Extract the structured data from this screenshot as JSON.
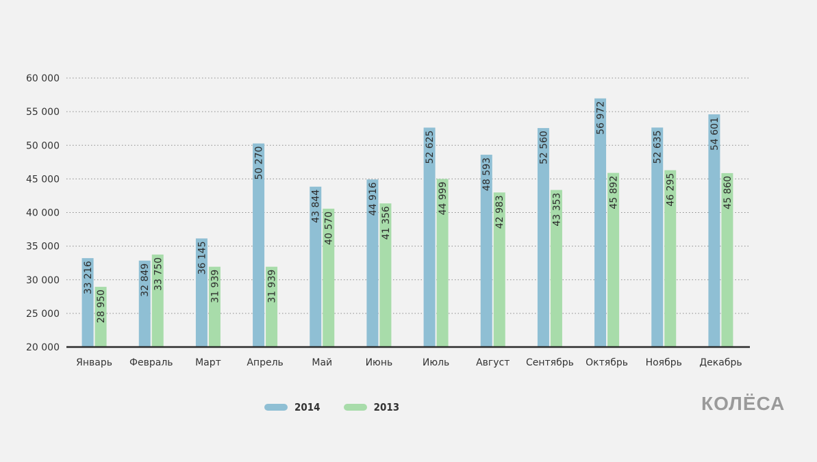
{
  "logo": {
    "text": "КОЛЁСА"
  },
  "chart_data": {
    "type": "bar",
    "title": "",
    "xlabel": "",
    "ylabel": "",
    "ylim": [
      20000,
      60000
    ],
    "yticks": [
      20000,
      25000,
      30000,
      35000,
      40000,
      45000,
      50000,
      55000,
      60000
    ],
    "ytick_labels": [
      "20 000",
      "25 000",
      "30 000",
      "35 000",
      "40 000",
      "45 000",
      "50 000",
      "55 000",
      "60 000"
    ],
    "grid": "horizontal dotted",
    "legend_position": "bottom-center",
    "categories": [
      "Январь",
      "Февраль",
      "Март",
      "Апрель",
      "Май",
      "Июнь",
      "Июль",
      "Август",
      "Сентябрь",
      "Октябрь",
      "Ноябрь",
      "Декабрь"
    ],
    "series": [
      {
        "name": "2014",
        "color": "#8fbfd4",
        "values": [
          33216,
          32849,
          36145,
          50270,
          43844,
          44916,
          52625,
          48593,
          52560,
          56972,
          52635,
          54601
        ],
        "labels": [
          "33 216",
          "32 849",
          "36 145",
          "50 270",
          "43 844",
          "44 916",
          "52 625",
          "48 593",
          "52 560",
          "56 972",
          "52 635",
          "54 601"
        ]
      },
      {
        "name": "2013",
        "color": "#a8dcaa",
        "values": [
          28950,
          33750,
          31939,
          31939,
          40570,
          41356,
          44999,
          42983,
          43353,
          45892,
          46295,
          45860
        ],
        "labels": [
          "28 950",
          "33 750",
          "31 939",
          "31 939",
          "40 570",
          "41 356",
          "44 999",
          "42 983",
          "43 353",
          "45 892",
          "46 295",
          "45 860"
        ]
      }
    ]
  }
}
